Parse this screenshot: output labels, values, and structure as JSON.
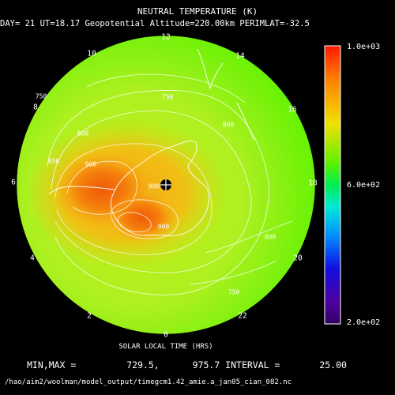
{
  "title": "NEUTRAL TEMPERATURE (K)",
  "subtitle": "DAY= 21 UT=18.17 Geopotential Altitude=220.00km PERIMLAT=-32.5",
  "xlabel": "SOLAR LOCAL TIME (HRS)",
  "stats": {
    "min_max_label": "MIN,MAX =",
    "min": "729.5,",
    "max": "975.7",
    "interval_label": "INTERVAL =",
    "interval": "25.00"
  },
  "filepath": "/hao/aim2/woolman/model_output/timegcm1.42_amie.a_jan05_cian_082.nc",
  "local_time_labels": [
    "12",
    "14",
    "16",
    "18",
    "20",
    "22",
    "0",
    "2",
    "4",
    "6",
    "8",
    "10"
  ],
  "colorbar": {
    "max_label": "1.0e+03",
    "mid_label": "6.0e+02",
    "min_label": "2.0e+02",
    "min": 200,
    "max": 1000
  },
  "contour_labels": [
    "750",
    "800",
    "850",
    "900",
    "900",
    "900",
    "800",
    "750",
    "800",
    "750"
  ],
  "chart_data": {
    "type": "heatmap",
    "title": "NEUTRAL TEMPERATURE (K)",
    "xlabel": "SOLAR LOCAL TIME (HRS)",
    "projection": "south polar stereographic",
    "perimeter_latitude": -32.5,
    "min": 729.5,
    "max": 975.7,
    "contour_interval": 25.0,
    "color_range": [
      200,
      1000
    ],
    "contour_levels": [
      750,
      800,
      850,
      900
    ]
  }
}
